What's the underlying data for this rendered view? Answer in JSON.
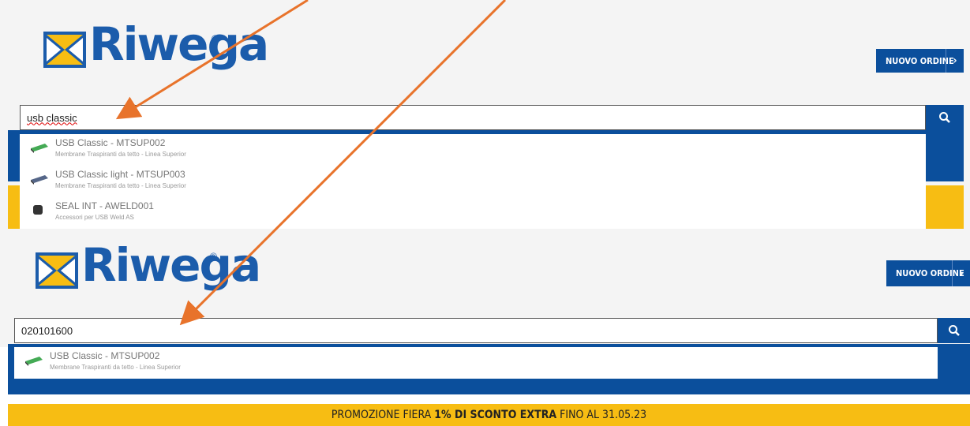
{
  "panels": [
    {
      "logo": "Riwega",
      "registered": "®",
      "button": "NUOVO ORDINE",
      "search": "usb classic",
      "results": [
        {
          "title": "USB Classic - MTSUP002",
          "subtitle": "Membrane Traspiranti da tetto - Linea Superior"
        },
        {
          "title": "USB Classic light - MTSUP003",
          "subtitle": "Membrane Traspiranti da tetto - Linea Superior"
        },
        {
          "title": "SEAL INT - AWELD001",
          "subtitle": "Accessori per USB Weld AS"
        }
      ]
    },
    {
      "logo": "Riwega",
      "registered": "®",
      "button": "NUOVO ORDINE",
      "search": "020101600",
      "results": [
        {
          "title": "USB Classic - MTSUP002",
          "subtitle": "Membrane Traspiranti da tetto - Linea Superior"
        }
      ]
    }
  ],
  "promo": {
    "prefix": "PROMOZIONE FIERA ",
    "highlight": "1% DI SCONTO EXTRA",
    "suffix": " FINO AL 31.05.23"
  }
}
